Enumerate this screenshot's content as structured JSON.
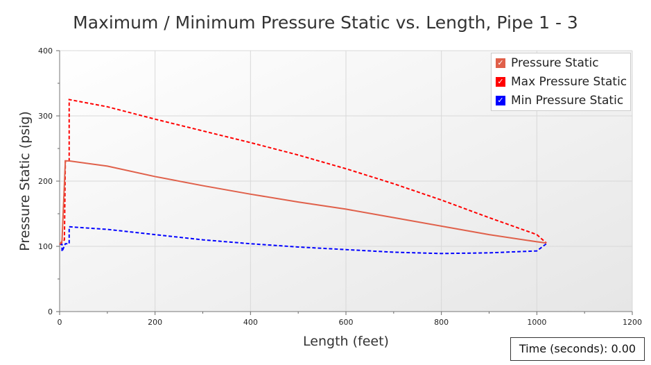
{
  "chart_data": {
    "type": "line",
    "title": "Maximum / Minimum Pressure Static vs. Length, Pipe 1 - 3",
    "xlabel": "Length (feet)",
    "ylabel": "Pressure Static (psig)",
    "xlim": [
      0,
      1200
    ],
    "ylim": [
      0,
      400
    ],
    "xticks": [
      0,
      200,
      400,
      600,
      800,
      1000,
      1200
    ],
    "yticks": [
      0,
      100,
      200,
      300,
      400
    ],
    "grid": true,
    "legend_position": "top-right",
    "series": [
      {
        "name": "Pressure Static",
        "color": "#e0604a",
        "style": "solid",
        "x": [
          0,
          5,
          12,
          20,
          100,
          200,
          300,
          400,
          500,
          600,
          700,
          800,
          900,
          1000,
          1020
        ],
        "y": [
          103,
          108,
          231,
          231,
          223,
          207,
          193,
          180,
          168,
          157,
          144,
          131,
          118,
          107,
          105
        ]
      },
      {
        "name": "Max Pressure Static",
        "color": "#ff0000",
        "style": "dashed",
        "x": [
          0,
          8,
          10,
          12,
          20,
          20,
          100,
          200,
          300,
          400,
          500,
          600,
          700,
          800,
          900,
          1000,
          1020
        ],
        "y": [
          103,
          108,
          110,
          231,
          231,
          325,
          314,
          295,
          277,
          259,
          240,
          219,
          196,
          171,
          144,
          118,
          105
        ]
      },
      {
        "name": "Min Pressure Static",
        "color": "#0000ff",
        "style": "dashed",
        "x": [
          0,
          5,
          5,
          12,
          20,
          20,
          100,
          200,
          300,
          400,
          500,
          600,
          700,
          800,
          900,
          1000,
          1020
        ],
        "y": [
          103,
          103,
          92,
          104,
          104,
          130,
          126,
          118,
          110,
          104,
          99,
          95,
          91,
          89,
          90,
          93,
          104
        ]
      }
    ]
  },
  "time_label": "Time (seconds): 0.00"
}
